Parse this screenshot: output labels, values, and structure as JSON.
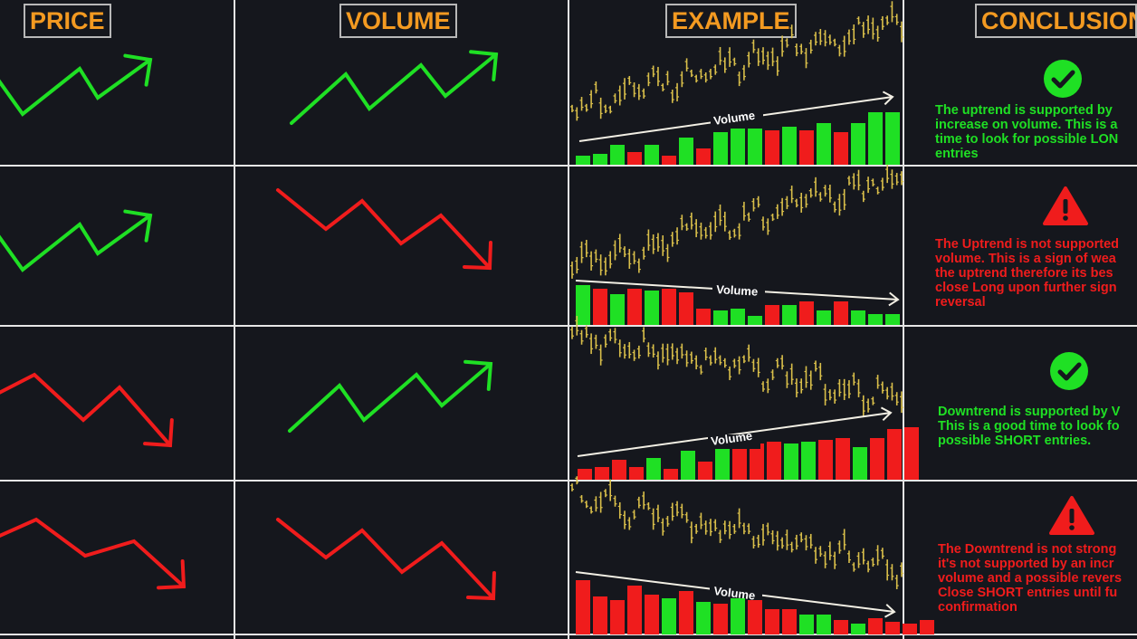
{
  "colors": {
    "background": "#15171d",
    "grid": "#e6e6e6",
    "header_text": "#f39a21",
    "up": "#1fe024",
    "down": "#f01c1c",
    "price_bars": "#d9bf4a",
    "volume_arrow": "#f2efe4"
  },
  "headers": {
    "price": "PRICE",
    "volume": "VOLUME",
    "example": "EXAMPLE",
    "conclusion": "CONCLUSION"
  },
  "rows": [
    {
      "price_direction": "up",
      "volume_direction": "up",
      "example_volume_label": "Volume",
      "example_volume_trend": "rising",
      "status_icon": "check-circle-icon",
      "conclusion_color": "#1fe024",
      "conclusion": "The uptrend is supported by\nincrease on volume. This is a\ntime to look for possible LON\nentries"
    },
    {
      "price_direction": "up",
      "volume_direction": "down",
      "example_volume_label": "Volume",
      "example_volume_trend": "falling",
      "status_icon": "warning-triangle-icon",
      "conclusion_color": "#f01c1c",
      "conclusion": "The Uptrend is not supported\nvolume. This is a sign of wea\nthe uptrend therefore its bes\nclose Long upon further sign\nreversal"
    },
    {
      "price_direction": "down",
      "volume_direction": "up",
      "example_volume_label": "Volume",
      "example_volume_trend": "rising",
      "status_icon": "check-circle-icon",
      "conclusion_color": "#1fe024",
      "conclusion": "Downtrend is supported by V\nThis is a good time to look fo\npossible SHORT entries."
    },
    {
      "price_direction": "down",
      "volume_direction": "down",
      "example_volume_label": "Volume",
      "example_volume_trend": "falling",
      "status_icon": "warning-triangle-icon",
      "conclusion_color": "#f01c1c",
      "conclusion": "The Downtrend is not strong\nit's not supported by an incr\nvolume and a possible revers\nClose SHORT entries until fu\nconfirmation"
    }
  ]
}
